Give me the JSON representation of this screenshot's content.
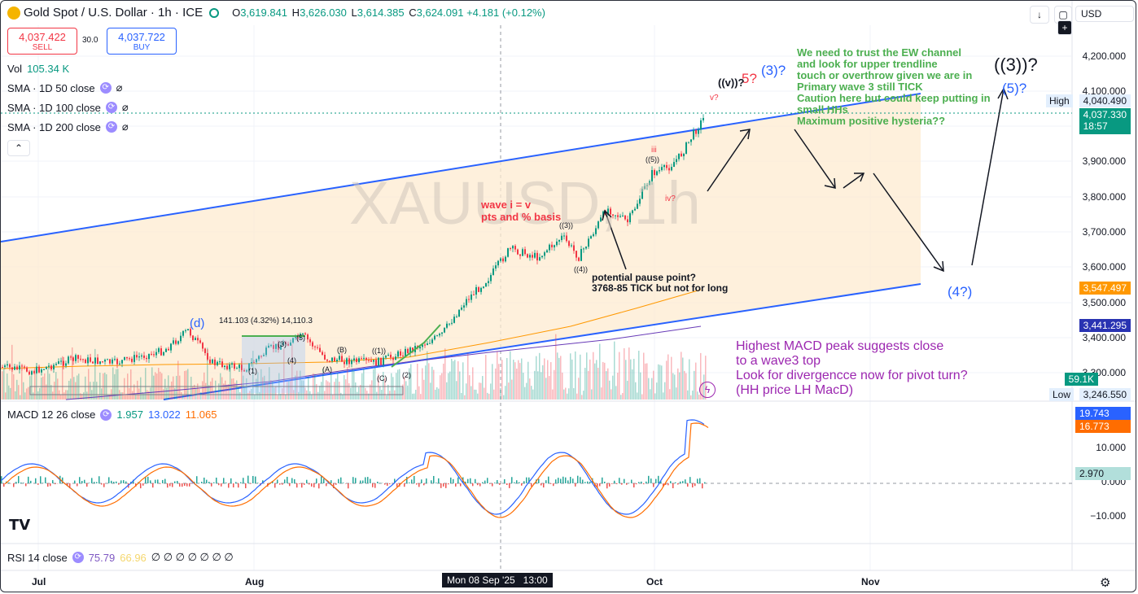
{
  "header": {
    "symbol": "Gold Spot / U.S. Dollar · 1h · ICE",
    "open_label": "O",
    "open": "3,619.841",
    "high_label": "H",
    "high": "3,626.030",
    "low_label": "L",
    "low": "3,614.385",
    "close_label": "C",
    "close": "3,624.091",
    "change": "+4.181 (+0.12%)",
    "currency": "USD"
  },
  "trade": {
    "sell_price": "4,037.422",
    "sell_label": "SELL",
    "spread": "30.0",
    "buy_price": "4,037.722",
    "buy_label": "BUY"
  },
  "indicators": {
    "vol_label": "Vol",
    "vol_value": "105.34 K",
    "sma50": "SMA · 1D 50 close",
    "sma100": "SMA · 1D 100 close",
    "sma200": "SMA · 1D 200 close",
    "macd_label": "MACD 12 26 close",
    "macd_v1": "1.957",
    "macd_v2": "13.022",
    "macd_v3": "11.065",
    "rsi_label": "RSI 14 close",
    "rsi_v1": "75.79",
    "rsi_v2": "66.96",
    "rsi_dashes": "∅ ∅ ∅ ∅ ∅ ∅ ∅"
  },
  "watermark": "XAUUSD, 1h",
  "price_axis": [
    "4,200.000",
    "4,100.000",
    "3,900.000",
    "3,800.000",
    "3,700.000",
    "3,600.000",
    "3,500.000",
    "3,400.000",
    "3,300.000"
  ],
  "price_tags": {
    "high_label": "High",
    "high_value": "4,040.490",
    "last": "4,037.330",
    "countdown": "18:57",
    "sma_orange": "3,547.497",
    "sma_blue": "3,441.295",
    "vol": "59.1K",
    "low_label": "Low",
    "low_value": "3,246.550"
  },
  "macd_axis": [
    "10.000",
    "0.000",
    "−10.000"
  ],
  "macd_tags": {
    "blue": "19.743",
    "orange": "16.773",
    "hist": "2.970"
  },
  "time_axis": {
    "jul": "Jul",
    "aug": "Aug",
    "crosshair": "Mon 08 Sep '25   13:00",
    "oct": "Oct",
    "nov": "Nov"
  },
  "annotations": {
    "ew_note": [
      "We need to trust the EW channel",
      "and look for upper trendline",
      "touch or overthrow given we are in",
      "Primary wave 3 still TICK",
      "Caution here but could keep putting in",
      "small HHs",
      "Maximum positive hysteria??"
    ],
    "macd_note": [
      "Highest MACD peak suggests close",
      "to a wave3 top",
      "Look for divergencce now for pivot turn?",
      "(HH price LH MacD)"
    ],
    "wave_i_v": [
      "wave i = v",
      "pts and % basis"
    ],
    "pause": [
      "potential pause point?",
      "3768-85 TICK but not for long"
    ],
    "measure": "141.103 (4.32%) 14,110.3",
    "w_3_3": "((3))?",
    "w_5_3": "(5)?",
    "w_4_3": "(4?)",
    "w_3b": "(3)?",
    "w_5q": "5?",
    "w_vv": "((v))?",
    "w_v": "v?",
    "w_iii": "iii",
    "w_5p": "((5))",
    "w_iv": "iv?",
    "w_33": "((3))",
    "w_44": "((4))",
    "w_d": "(d)",
    "w_11": "((1))",
    "w_2p": "(2)",
    "w_3p": "(3)",
    "w_5s": "(5)",
    "w_1s": "(1)",
    "w_B": "(B)",
    "w_A": "(A)",
    "w_C": "(C)",
    "w_4s": "(4)"
  },
  "colors": {
    "up": "#089981",
    "down": "#f23645",
    "channel": "#2962ff",
    "fill": "#fdebd0",
    "ew_green": "#4caf50",
    "wave_red": "#f23645",
    "macd_purple": "#9c27b0"
  }
}
